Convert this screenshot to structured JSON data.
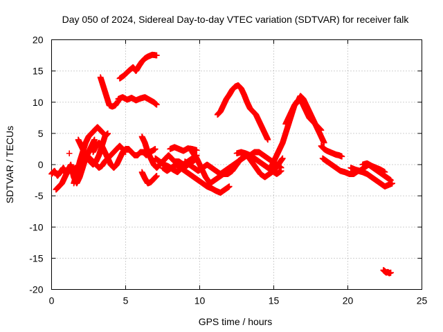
{
  "chart_data": {
    "type": "scatter",
    "title": "Day 050 of 2024, Sidereal Day-to-day VTEC variation (SDTVAR) for receiver falk",
    "xlabel": "GPS time / hours",
    "ylabel": "SDTVAR / TECUs",
    "xlim": [
      0,
      25
    ],
    "ylim": [
      -20,
      20
    ],
    "xticks": [
      0,
      5,
      10,
      15,
      20,
      25
    ],
    "yticks": [
      -20,
      -15,
      -10,
      -5,
      0,
      5,
      10,
      15,
      20
    ],
    "xtick_labels": [
      "0",
      "5",
      "10",
      "15",
      "20",
      "25"
    ],
    "ytick_labels": [
      "-20",
      "-15",
      "-10",
      "-5",
      "0",
      "5",
      "10",
      "15",
      "20"
    ],
    "grid": true,
    "marker": "plus",
    "color": "#ff0000",
    "series": [
      {
        "name": "a1",
        "x": [
          0.0,
          0.2,
          0.4,
          0.6,
          0.8,
          1.0,
          1.2,
          1.4,
          1.6,
          1.8,
          2.0
        ],
        "y": [
          -1.5,
          -1.0,
          -1.8,
          -1.2,
          -0.5,
          -1.5,
          -0.8,
          -1.2,
          -0.5,
          -1.5,
          -1.0
        ]
      },
      {
        "name": "a2",
        "x": [
          0.3,
          0.5,
          0.7,
          0.9,
          1.1,
          1.3,
          1.5,
          1.7,
          1.9,
          2.1,
          2.3,
          2.5,
          2.7,
          2.9
        ],
        "y": [
          -4.0,
          -3.5,
          -3.0,
          -2.0,
          -1.0,
          0.0,
          -2.0,
          -3.0,
          -2.0,
          -0.5,
          1.0,
          2.0,
          3.0,
          4.0
        ]
      },
      {
        "name": "a3",
        "x": [
          1.5,
          1.7,
          1.9,
          2.1,
          2.3,
          2.5,
          2.7,
          2.9,
          3.1,
          3.3,
          3.5
        ],
        "y": [
          -3.0,
          -1.5,
          0.5,
          2.0,
          3.5,
          4.5,
          5.0,
          5.5,
          6.0,
          5.5,
          5.0
        ]
      },
      {
        "name": "a4",
        "x": [
          1.8,
          2.0,
          2.2,
          2.4,
          2.6,
          2.8,
          3.0,
          3.2,
          3.4,
          3.6,
          3.8
        ],
        "y": [
          4.0,
          3.0,
          2.0,
          1.5,
          0.5,
          0.0,
          0.5,
          1.5,
          3.0,
          4.5,
          5.0
        ]
      },
      {
        "name": "a5",
        "x": [
          1.2
        ],
        "y": [
          1.8
        ]
      },
      {
        "name": "b1",
        "x": [
          2.8,
          3.0,
          3.2,
          3.4,
          3.6,
          3.8,
          4.0,
          4.2,
          4.4,
          4.6,
          4.8,
          5.0,
          5.2,
          5.4,
          5.6,
          5.8,
          6.0,
          6.2,
          6.4,
          6.6,
          6.8,
          7.0
        ],
        "y": [
          2.0,
          3.0,
          3.5,
          3.0,
          2.0,
          1.0,
          0.0,
          -0.5,
          0.0,
          1.0,
          2.0,
          2.5,
          2.5,
          2.0,
          1.5,
          1.5,
          2.0,
          2.0,
          1.5,
          2.0,
          2.2,
          2.5
        ]
      },
      {
        "name": "b2",
        "x": [
          2.6,
          2.8,
          3.0,
          3.2,
          3.4,
          3.6,
          3.8,
          4.0,
          4.2,
          4.4,
          4.6,
          4.8,
          5.0
        ],
        "y": [
          1.0,
          0.5,
          0.0,
          -0.5,
          -0.2,
          0.5,
          1.0,
          1.5,
          2.0,
          2.5,
          3.0,
          2.5,
          2.0
        ]
      },
      {
        "name": "c1",
        "x": [
          3.3,
          3.5,
          3.7,
          3.9,
          4.1,
          4.3,
          4.5
        ],
        "y": [
          14.0,
          12.5,
          11.0,
          9.5,
          9.3,
          9.5,
          10.2
        ]
      },
      {
        "name": "c2",
        "x": [
          4.5,
          4.8,
          5.1,
          5.4,
          5.7,
          6.0,
          6.3,
          6.6,
          6.9,
          7.1
        ],
        "y": [
          10.5,
          10.8,
          10.4,
          10.7,
          10.3,
          10.6,
          10.8,
          10.4,
          10.0,
          9.6
        ]
      },
      {
        "name": "d1",
        "x": [
          4.6,
          4.9,
          5.2,
          5.5,
          5.7,
          5.9,
          6.1,
          6.3,
          6.5,
          6.8,
          7.1
        ],
        "y": [
          13.8,
          14.3,
          15.0,
          15.6,
          15.0,
          15.8,
          16.5,
          17.0,
          17.3,
          17.6,
          17.5
        ]
      },
      {
        "name": "e1",
        "x": [
          6.1,
          6.3,
          6.5,
          6.7,
          6.9,
          7.1,
          7.3,
          7.5,
          7.7,
          7.9,
          8.1,
          8.3,
          8.6,
          8.9,
          9.2,
          9.5,
          9.8
        ],
        "y": [
          4.5,
          3.5,
          2.0,
          1.0,
          0.0,
          -0.5,
          0.0,
          0.5,
          1.0,
          1.5,
          1.0,
          0.5,
          0.5,
          0.0,
          0.5,
          1.0,
          1.5
        ]
      },
      {
        "name": "e2",
        "x": [
          6.1,
          6.3,
          6.5,
          6.7,
          6.9,
          7.1
        ],
        "y": [
          -1.2,
          -2.2,
          -3.0,
          -2.8,
          -2.3,
          -1.8
        ]
      },
      {
        "name": "e3",
        "x": [
          7.0,
          7.3,
          7.6,
          7.9,
          8.2,
          8.5,
          8.8,
          9.1,
          9.4,
          9.7
        ],
        "y": [
          1.0,
          0.5,
          0.0,
          -0.3,
          -0.8,
          -1.2,
          -0.5,
          -0.2,
          0.3,
          0.8
        ]
      },
      {
        "name": "e4",
        "x": [
          8.0,
          8.3,
          8.6,
          8.9,
          9.2,
          9.5,
          9.8
        ],
        "y": [
          2.5,
          2.8,
          2.5,
          2.2,
          2.6,
          2.5,
          2.3
        ]
      },
      {
        "name": "f1",
        "x": [
          7.5,
          7.8,
          8.1,
          8.4,
          8.7,
          9.0,
          9.3,
          9.6,
          9.9,
          10.2,
          10.5,
          10.8,
          11.1,
          11.4,
          11.7,
          12.0
        ],
        "y": [
          -0.5,
          -1.0,
          -0.5,
          0.0,
          -0.5,
          -1.0,
          -1.5,
          -2.0,
          -2.5,
          -3.0,
          -3.5,
          -3.8,
          -4.2,
          -4.5,
          -4.0,
          -3.5
        ]
      },
      {
        "name": "f2",
        "x": [
          9.0,
          9.3,
          9.6,
          9.9,
          10.2,
          10.5,
          10.8,
          11.1,
          11.4,
          11.7,
          12.0,
          12.3,
          12.6,
          12.9,
          13.2
        ],
        "y": [
          0.5,
          0.0,
          -0.5,
          -1.0,
          -0.5,
          0.0,
          -0.5,
          -1.0,
          -1.5,
          -1.0,
          -0.5,
          0.0,
          0.5,
          1.0,
          1.5
        ]
      },
      {
        "name": "f3",
        "x": [
          9.5,
          9.8,
          10.1,
          10.4,
          10.7,
          11.0,
          11.3,
          11.6,
          11.9,
          12.2,
          12.5,
          12.8,
          13.1,
          13.4,
          13.7,
          14.0,
          14.3,
          14.6,
          14.9,
          15.2,
          15.5
        ],
        "y": [
          2.0,
          1.0,
          -0.5,
          -2.0,
          -3.0,
          -2.5,
          -2.0,
          -1.5,
          -1.5,
          -1.0,
          0.0,
          1.0,
          1.5,
          1.5,
          2.0,
          2.0,
          1.5,
          1.0,
          0.5,
          0.0,
          -0.5
        ]
      },
      {
        "name": "g1",
        "x": [
          11.2,
          11.4,
          11.6,
          11.8,
          12.0,
          12.2,
          12.4,
          12.6,
          12.8,
          13.0,
          13.2,
          13.4,
          13.6,
          13.8,
          14.0,
          14.2,
          14.4,
          14.6
        ],
        "y": [
          8.0,
          8.5,
          9.5,
          10.5,
          11.2,
          12.0,
          12.5,
          12.7,
          12.2,
          11.2,
          10.0,
          9.0,
          8.5,
          8.0,
          7.0,
          6.0,
          5.0,
          4.0
        ]
      },
      {
        "name": "h1",
        "x": [
          12.5,
          12.8,
          13.1,
          13.4,
          13.7,
          14.0,
          14.3,
          14.6,
          14.9,
          15.2,
          15.5
        ],
        "y": [
          1.8,
          2.0,
          1.8,
          1.5,
          1.0,
          0.5,
          0.0,
          -0.5,
          -1.0,
          -1.5,
          -1.0
        ]
      },
      {
        "name": "h2",
        "x": [
          13.2,
          13.5,
          13.8,
          14.1,
          14.4,
          14.7,
          15.0,
          15.3,
          15.6
        ],
        "y": [
          1.5,
          0.5,
          -0.5,
          -1.5,
          -2.0,
          -1.5,
          -1.0,
          0.0,
          1.0
        ]
      },
      {
        "name": "i1",
        "x": [
          14.8,
          15.0,
          15.2,
          15.4,
          15.6,
          15.8,
          16.0,
          16.2,
          16.4,
          16.6,
          16.8,
          17.0,
          17.2,
          17.4,
          17.6,
          17.8,
          18.0,
          18.2,
          18.4
        ],
        "y": [
          -0.5,
          0.5,
          1.5,
          2.5,
          3.5,
          5.0,
          6.5,
          8.0,
          9.5,
          10.0,
          11.0,
          10.5,
          9.5,
          8.5,
          7.5,
          6.5,
          5.5,
          4.5,
          3.5
        ]
      },
      {
        "name": "i2",
        "x": [
          15.8,
          16.0,
          16.2,
          16.4,
          16.6,
          16.8,
          17.0,
          17.2,
          17.4,
          17.6,
          17.8,
          18.0,
          18.2
        ],
        "y": [
          6.5,
          7.5,
          8.5,
          9.5,
          10.2,
          10.5,
          9.5,
          8.5,
          7.5,
          7.0,
          6.5,
          6.0,
          5.5
        ]
      },
      {
        "name": "i3",
        "x": [
          18.2,
          18.4,
          18.6,
          18.8,
          19.0,
          19.2,
          19.4,
          19.6
        ],
        "y": [
          3.0,
          2.5,
          2.2,
          2.0,
          1.8,
          1.6,
          1.5,
          1.3
        ]
      },
      {
        "name": "j1",
        "x": [
          18.3,
          18.6,
          18.9,
          19.2,
          19.5,
          19.8,
          20.1,
          20.4,
          20.7,
          21.0,
          21.3,
          21.6,
          21.9,
          22.2,
          22.5,
          22.8,
          23.0
        ],
        "y": [
          1.0,
          0.5,
          0.0,
          -0.5,
          -1.0,
          -1.2,
          -1.5,
          -1.5,
          -1.0,
          -1.2,
          -1.5,
          -2.0,
          -2.5,
          -3.0,
          -3.5,
          -3.2,
          -3.0
        ]
      },
      {
        "name": "j2",
        "x": [
          20.2,
          20.5,
          20.8,
          21.1,
          21.4,
          21.7,
          22.0,
          22.3,
          22.6,
          22.9
        ],
        "y": [
          -0.5,
          -0.8,
          -1.0,
          -0.5,
          0.0,
          -0.5,
          -1.0,
          -1.5,
          -2.0,
          -2.5
        ]
      },
      {
        "name": "j3",
        "x": [
          21.0,
          21.3,
          21.6,
          21.9,
          22.2,
          22.5
        ],
        "y": [
          0.0,
          0.2,
          -0.2,
          -0.5,
          -0.8,
          -1.2
        ]
      },
      {
        "name": "k1",
        "x": [
          22.4,
          22.5,
          22.6,
          22.7,
          22.8,
          22.9
        ],
        "y": [
          -16.9,
          -17.1,
          -17.3,
          -17.2,
          -17.4,
          -17.3
        ]
      }
    ]
  }
}
